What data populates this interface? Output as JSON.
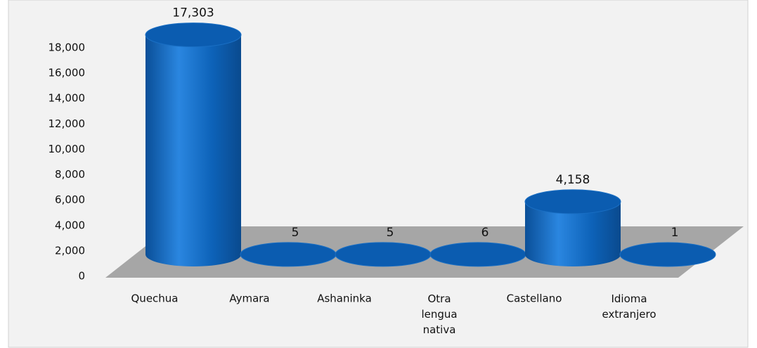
{
  "chart_data": {
    "type": "bar",
    "categories": [
      "Quechua",
      "Aymara",
      "Ashaninka",
      "Otra lengua nativa",
      "Castellano",
      "Idioma extranjero"
    ],
    "values": [
      17303,
      5,
      5,
      6,
      4158,
      1
    ],
    "value_labels": [
      "17,303",
      "5",
      "5",
      "6",
      "4,158",
      "1"
    ],
    "color": "#0a5fb4",
    "ylim": [
      0,
      18000
    ],
    "yticks": [
      0,
      {
        "value": 2000,
        "label": "2,000"
      },
      {
        "value": 4000,
        "label": "4,000"
      },
      {
        "value": 6000,
        "label": "6,000"
      },
      {
        "value": 8000,
        "label": "8,000"
      },
      {
        "value": 10000,
        "label": "10,000"
      },
      {
        "value": 12000,
        "label": "12,000"
      },
      {
        "value": 14000,
        "label": "14,000"
      },
      {
        "value": 16000,
        "label": "16,000"
      },
      {
        "value": 18000,
        "label": "18,000"
      }
    ]
  }
}
